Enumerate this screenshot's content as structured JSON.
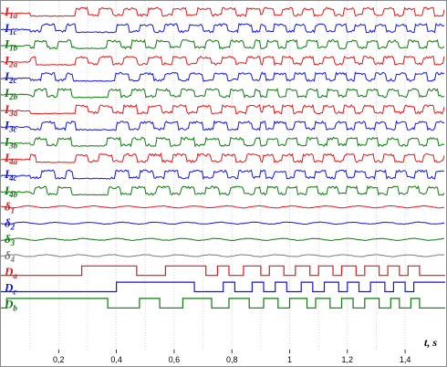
{
  "chart_data": {
    "type": "line",
    "title": "",
    "xlabel": "t, s",
    "ylabel": "",
    "xlim": [
      0,
      1.46
    ],
    "xticks": [
      0.2,
      0.4,
      0.6,
      0.8,
      1,
      1.2,
      1.4
    ],
    "xtick_labels": [
      "0,2",
      "0,4",
      "0,6",
      "0,8",
      "1",
      "1,2",
      "1,4"
    ],
    "grid": true,
    "legend": "none",
    "colors": {
      "red": "#e01818",
      "blue": "#1414dc",
      "green": "#0c7a0c",
      "gray": "#7a7a7a",
      "grid": "#b8b8b8"
    },
    "series": [
      {
        "name": "I1a",
        "color": "red",
        "kind": "current",
        "switch_on": 0.1,
        "off_window": [
          0.08,
          0.26
        ],
        "period": 0.085
      },
      {
        "name": "I1c",
        "color": "blue",
        "kind": "current",
        "switch_on": 0.1,
        "off_window": [
          0.26,
          0.4
        ],
        "period": 0.085
      },
      {
        "name": "I1b",
        "color": "green",
        "kind": "current",
        "switch_on": 0.1,
        "off_window": [
          0.26,
          0.36
        ],
        "period": 0.085
      },
      {
        "name": "I2a",
        "color": "red",
        "kind": "current",
        "switch_on": 0.1,
        "off_window": [
          0.12,
          0.26
        ],
        "period": 0.085
      },
      {
        "name": "I2c",
        "color": "blue",
        "kind": "current",
        "switch_on": 0.1,
        "off_window": [
          0.25,
          0.38
        ],
        "period": 0.085
      },
      {
        "name": "I2b",
        "color": "green",
        "kind": "current",
        "switch_on": 0.1,
        "off_window": [
          0.25,
          0.37
        ],
        "period": 0.085
      },
      {
        "name": "I3a",
        "color": "red",
        "kind": "current",
        "switch_on": 0.1,
        "off_window": [
          0.1,
          0.26
        ],
        "period": 0.085
      },
      {
        "name": "I3c",
        "color": "blue",
        "kind": "current",
        "switch_on": 0.1,
        "off_window": [
          0.26,
          0.4
        ],
        "period": 0.085
      },
      {
        "name": "I3b",
        "color": "green",
        "kind": "current",
        "switch_on": 0.1,
        "off_window": [
          0.26,
          0.36
        ],
        "period": 0.085
      },
      {
        "name": "I4a",
        "color": "red",
        "kind": "current",
        "switch_on": 0.1,
        "off_window": [
          0.12,
          0.26
        ],
        "period": 0.085
      },
      {
        "name": "I4c",
        "color": "blue",
        "kind": "current",
        "switch_on": 0.1,
        "off_window": [
          0.25,
          0.38
        ],
        "period": 0.085
      },
      {
        "name": "I4b",
        "color": "green",
        "kind": "current",
        "switch_on": 0.1,
        "off_window": [
          0.25,
          0.37
        ],
        "period": 0.085
      },
      {
        "name": "δ1",
        "color": "red",
        "kind": "angle"
      },
      {
        "name": "δ2",
        "color": "blue",
        "kind": "angle"
      },
      {
        "name": "δ3",
        "color": "green",
        "kind": "angle"
      },
      {
        "name": "δ4",
        "color": "gray",
        "kind": "angle"
      },
      {
        "name": "Da",
        "color": "red",
        "kind": "digital",
        "transitions": [
          0.28,
          0.47,
          0.57,
          0.71,
          0.75,
          0.79,
          0.84,
          0.9,
          0.93,
          0.98,
          1.02,
          1.07,
          1.1,
          1.15,
          1.18,
          1.23,
          1.26,
          1.31,
          1.34,
          1.38,
          1.41,
          1.45
        ]
      },
      {
        "name": "Dc",
        "color": "blue",
        "kind": "digital",
        "transitions": [
          0.4,
          0.67,
          0.77,
          0.81,
          0.87,
          0.91,
          0.95,
          0.99,
          1.04,
          1.08,
          1.12,
          1.17,
          1.2,
          1.24,
          1.28,
          1.33,
          1.36,
          1.4,
          1.43
        ]
      },
      {
        "name": "Db",
        "color": "green",
        "kind": "digital",
        "transitions": [
          0.02,
          0.37,
          0.48,
          0.55,
          0.63,
          0.73,
          0.79,
          0.86,
          0.91,
          0.96,
          1.0,
          1.06,
          1.09,
          1.14,
          1.18,
          1.22,
          1.26,
          1.31,
          1.35,
          1.38,
          1.42,
          1.45
        ]
      }
    ],
    "labels": [
      {
        "base": "I",
        "sub": "1a",
        "color": "red"
      },
      {
        "base": "I",
        "sub": "1c",
        "color": "blue"
      },
      {
        "base": "I",
        "sub": "1b",
        "color": "green"
      },
      {
        "base": "I",
        "sub": "2a",
        "color": "red"
      },
      {
        "base": "I",
        "sub": "2c",
        "color": "blue"
      },
      {
        "base": "I",
        "sub": "2b",
        "color": "green"
      },
      {
        "base": "I",
        "sub": "3a",
        "color": "red"
      },
      {
        "base": "I",
        "sub": "3c",
        "color": "blue"
      },
      {
        "base": "I",
        "sub": "3b",
        "color": "green"
      },
      {
        "base": "I",
        "sub": "4a",
        "color": "red"
      },
      {
        "base": "I",
        "sub": "4c",
        "color": "blue"
      },
      {
        "base": "I",
        "sub": "4b",
        "color": "green"
      },
      {
        "base": "δ",
        "sub": "1",
        "color": "red"
      },
      {
        "base": "δ",
        "sub": "2",
        "color": "blue"
      },
      {
        "base": "δ",
        "sub": "3",
        "color": "green"
      },
      {
        "base": "δ",
        "sub": "4",
        "color": "gray"
      },
      {
        "base": "D",
        "sub": "a",
        "color": "red"
      },
      {
        "base": "D",
        "sub": "c",
        "color": "blue"
      },
      {
        "base": "D",
        "sub": "b",
        "color": "green"
      }
    ]
  }
}
